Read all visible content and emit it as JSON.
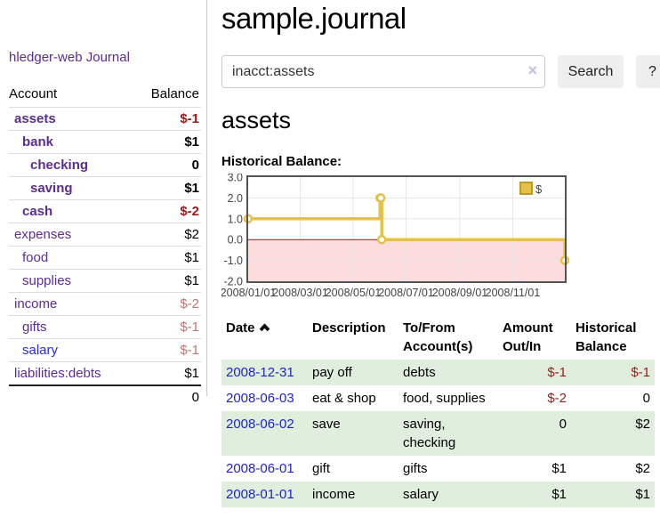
{
  "app": {
    "title": "hledger-web"
  },
  "sidebar": {
    "journal_link": "Journal",
    "headers": {
      "account": "Account",
      "balance": "Balance"
    },
    "accounts": [
      {
        "name": "assets",
        "balance": "$-1"
      },
      {
        "name": "bank",
        "balance": "$1"
      },
      {
        "name": "checking",
        "balance": "0"
      },
      {
        "name": "saving",
        "balance": "$1"
      },
      {
        "name": "cash",
        "balance": "$-2"
      },
      {
        "name": "expenses",
        "balance": "$2"
      },
      {
        "name": "food",
        "balance": "$1"
      },
      {
        "name": "supplies",
        "balance": "$1"
      },
      {
        "name": "income",
        "balance": "$-2"
      },
      {
        "name": "gifts",
        "balance": "$-1"
      },
      {
        "name": "salary",
        "balance": "$-1"
      },
      {
        "name": "liabilities:debts",
        "balance": "$1"
      }
    ],
    "total": "0"
  },
  "main": {
    "title": "sample.journal",
    "search": {
      "value": "inacct:assets",
      "clear_label": "×",
      "button_label": "Search",
      "help_label": "?"
    },
    "account_heading": "assets",
    "chart_heading": "Historical Balance:"
  },
  "chart_data": {
    "type": "line",
    "step": true,
    "series": [
      {
        "name": "$",
        "color": "#e6c14a",
        "x": [
          "2008-01-01",
          "2008-06-01",
          "2008-06-02",
          "2008-06-03",
          "2008-12-31"
        ],
        "y": [
          1,
          2,
          2,
          0,
          -1
        ]
      }
    ],
    "xlim": [
      "2008-01-01",
      "2008-12-31"
    ],
    "ylim": [
      -2,
      3
    ],
    "yticks": [
      "3.0",
      "2.0",
      "1.0",
      "0.0",
      "-1.0",
      "-2.0"
    ],
    "xticks": [
      "2008/01/01",
      "2008/03/01",
      "2008/05/01",
      "2008/07/01",
      "2008/09/01",
      "2008/11/01"
    ],
    "grid": true,
    "negative_fill": "#fcdcdc",
    "zero_line_color": "#8b1a1a",
    "border_color": "#545454",
    "legend": {
      "label": "$",
      "position": "top-right"
    }
  },
  "register": {
    "headers": {
      "date": "Date",
      "description": "Description",
      "tofrom": "To/From Account(s)",
      "amount": "Amount Out/In",
      "historical": "Historical Balance"
    },
    "rows": [
      {
        "date": "2008-12-31",
        "description": "pay off",
        "tofrom": "debts",
        "amount": "$-1",
        "historical": "$-1"
      },
      {
        "date": "2008-06-03",
        "description": "eat & shop",
        "tofrom": "food, supplies",
        "amount": "$-2",
        "historical": "0"
      },
      {
        "date": "2008-06-02",
        "description": "save",
        "tofrom": "saving, checking",
        "amount": "0",
        "historical": "$2"
      },
      {
        "date": "2008-06-01",
        "description": "gift",
        "tofrom": "gifts",
        "amount": "$1",
        "historical": "$2"
      },
      {
        "date": "2008-01-01",
        "description": "income",
        "tofrom": "salary",
        "amount": "$1",
        "historical": "$1"
      }
    ]
  }
}
